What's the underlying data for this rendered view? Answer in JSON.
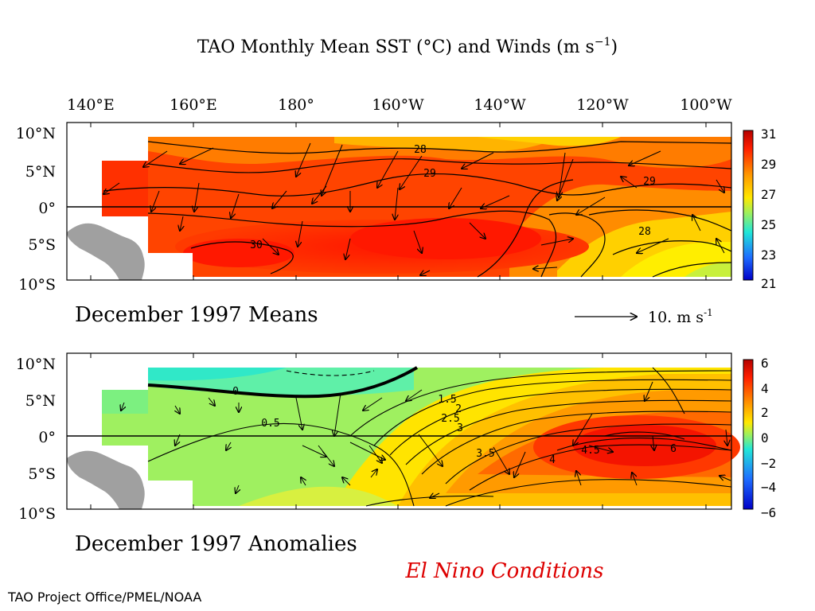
{
  "title": "TAO Monthly Mean SST (°C) and Winds (m s",
  "title_exp": "−1",
  "lon_labels": [
    "140°E",
    "160°E",
    "180°",
    "160°W",
    "140°W",
    "120°W",
    "100°W"
  ],
  "lat_labels": [
    "10°N",
    "5°N",
    "0°",
    "5°S",
    "10°S"
  ],
  "top_panel": {
    "caption": "December 1997 Means",
    "scale_label": "10. m s",
    "scale_exp": "-1",
    "colorbar_labels": [
      "31",
      "29",
      "27",
      "25",
      "23",
      "21"
    ],
    "contour_labels": [
      "28",
      "29",
      "30",
      "29",
      "28"
    ]
  },
  "bottom_panel": {
    "caption": "December 1997 Anomalies",
    "colorbar_labels": [
      "6",
      "4",
      "2",
      "0",
      "−2",
      "−4",
      "−6"
    ],
    "contour_labels": [
      "0",
      "0.5",
      "1.5",
      "2",
      "2.5",
      "3",
      "3.5",
      "4",
      "4.5",
      "6"
    ]
  },
  "condition_label": "El Nino Conditions",
  "credit": "TAO Project Office/PMEL/NOAA",
  "colors": {
    "sst_warm": "#ff2a00",
    "sst_cool": "#c8f03c",
    "anom_neutral": "#9ff060",
    "anom_high": "#ff1e00",
    "land": "#a0a0a0",
    "condition_text": "#dd0000"
  }
}
